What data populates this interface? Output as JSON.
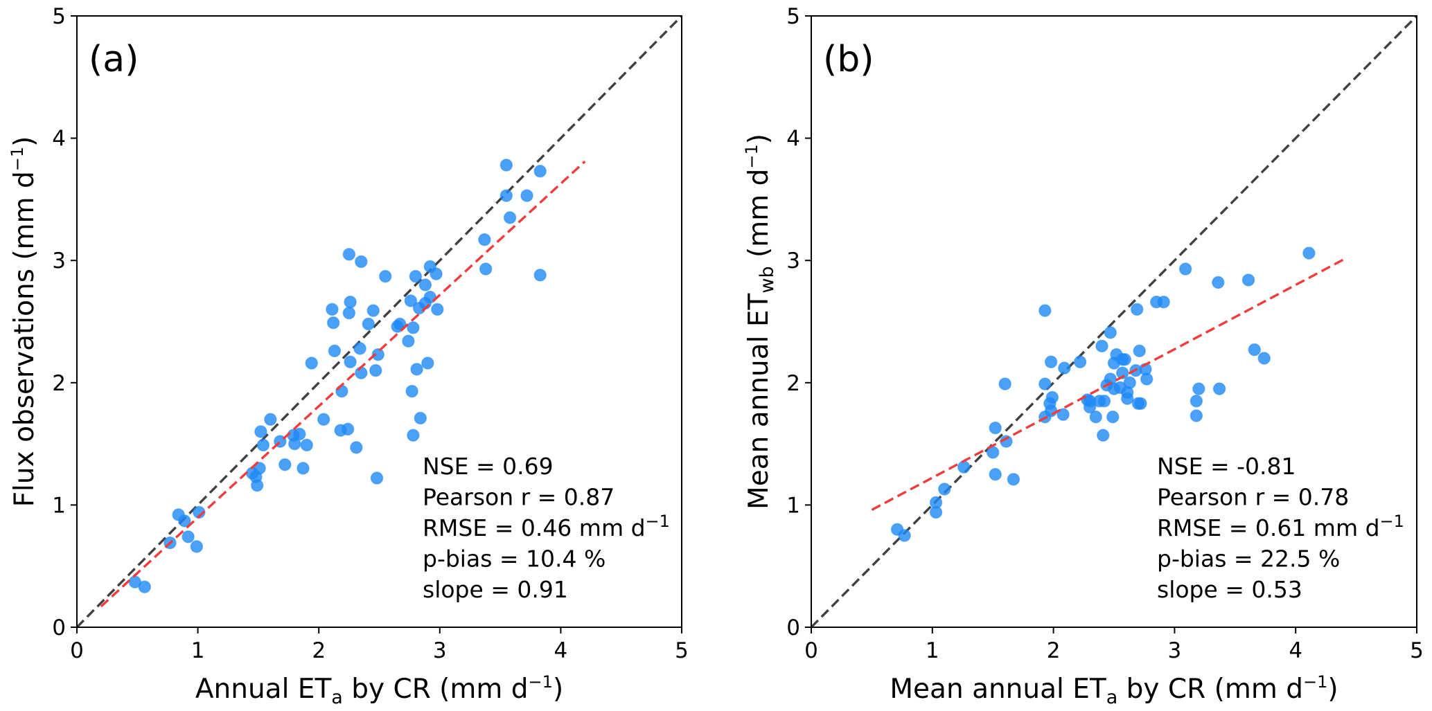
{
  "chart_data": [
    {
      "type": "scatter",
      "panel_label": "(a)",
      "xlabel": {
        "pre": "Annual ET",
        "sub": "a",
        "post": " by CR (mm d",
        "sup": "−1",
        "end": ")"
      },
      "ylabel": {
        "pre": "Flux observations (mm d",
        "sub": "",
        "post": "",
        "sup": "−1",
        "end": ")"
      },
      "xlim": [
        0,
        5
      ],
      "ylim": [
        0,
        5
      ],
      "xticks": [
        "0",
        "1",
        "2",
        "3",
        "4",
        "5"
      ],
      "yticks": [
        "0",
        "1",
        "2",
        "3",
        "4",
        "5"
      ],
      "grid": false,
      "point_color": "#1e88f5",
      "one_to_one_line": {
        "color": "#404040",
        "style": "dashed",
        "from": [
          0,
          0
        ],
        "to": [
          5,
          5
        ]
      },
      "regression_line": {
        "color": "#f03c3c",
        "style": "dashed",
        "from": [
          0.2,
          0.17
        ],
        "to": [
          4.2,
          3.81
        ]
      },
      "stats": [
        {
          "text": "NSE = 0.69"
        },
        {
          "text": "Pearson r = 0.87"
        },
        {
          "text": "RMSE = 0.46 mm d",
          "sup": "−1"
        },
        {
          "text": "p-bias = 10.4 %"
        },
        {
          "text": "slope = 0.91"
        }
      ],
      "points": [
        [
          0.48,
          0.37
        ],
        [
          0.56,
          0.33
        ],
        [
          0.77,
          0.69
        ],
        [
          0.84,
          0.92
        ],
        [
          0.89,
          0.87
        ],
        [
          0.92,
          0.74
        ],
        [
          0.99,
          0.66
        ],
        [
          1.01,
          0.94
        ],
        [
          1.45,
          1.26
        ],
        [
          1.48,
          1.23
        ],
        [
          1.49,
          1.16
        ],
        [
          1.51,
          1.3
        ],
        [
          1.52,
          1.6
        ],
        [
          1.54,
          1.49
        ],
        [
          1.6,
          1.7
        ],
        [
          1.68,
          1.52
        ],
        [
          1.72,
          1.33
        ],
        [
          1.79,
          1.57
        ],
        [
          1.8,
          1.5
        ],
        [
          1.84,
          1.58
        ],
        [
          1.87,
          1.3
        ],
        [
          1.9,
          1.49
        ],
        [
          1.94,
          2.16
        ],
        [
          2.04,
          1.7
        ],
        [
          2.11,
          2.6
        ],
        [
          2.12,
          2.49
        ],
        [
          2.13,
          2.26
        ],
        [
          2.18,
          1.61
        ],
        [
          2.19,
          1.93
        ],
        [
          2.24,
          1.62
        ],
        [
          2.25,
          3.05
        ],
        [
          2.25,
          2.57
        ],
        [
          2.26,
          2.66
        ],
        [
          2.26,
          2.17
        ],
        [
          2.31,
          1.47
        ],
        [
          2.34,
          2.28
        ],
        [
          2.35,
          2.99
        ],
        [
          2.35,
          2.08
        ],
        [
          2.41,
          2.48
        ],
        [
          2.45,
          2.59
        ],
        [
          2.47,
          2.1
        ],
        [
          2.48,
          1.22
        ],
        [
          2.49,
          2.23
        ],
        [
          2.55,
          2.87
        ],
        [
          2.65,
          2.46
        ],
        [
          2.67,
          2.48
        ],
        [
          2.74,
          2.34
        ],
        [
          2.76,
          2.67
        ],
        [
          2.77,
          1.93
        ],
        [
          2.78,
          1.57
        ],
        [
          2.78,
          2.45
        ],
        [
          2.8,
          2.87
        ],
        [
          2.81,
          2.11
        ],
        [
          2.83,
          2.61
        ],
        [
          2.84,
          1.71
        ],
        [
          2.88,
          2.65
        ],
        [
          2.88,
          2.8
        ],
        [
          2.9,
          2.16
        ],
        [
          2.92,
          2.7
        ],
        [
          2.92,
          2.95
        ],
        [
          2.97,
          2.89
        ],
        [
          2.98,
          2.6
        ],
        [
          3.37,
          3.17
        ],
        [
          3.38,
          2.93
        ],
        [
          3.55,
          3.53
        ],
        [
          3.55,
          3.78
        ],
        [
          3.58,
          3.35
        ],
        [
          3.72,
          3.53
        ],
        [
          3.83,
          3.73
        ],
        [
          3.83,
          2.88
        ]
      ]
    },
    {
      "type": "scatter",
      "panel_label": "(b)",
      "xlabel": {
        "pre": "Mean annual ET",
        "sub": "a",
        "post": " by CR (mm d",
        "sup": "−1",
        "end": ")"
      },
      "ylabel": {
        "pre": "Mean annual ET",
        "sub": "wb",
        "post": " (mm d",
        "sup": "−1",
        "end": ")"
      },
      "xlim": [
        0,
        5
      ],
      "ylim": [
        0,
        5
      ],
      "xticks": [
        "0",
        "1",
        "2",
        "3",
        "4",
        "5"
      ],
      "yticks": [
        "0",
        "1",
        "2",
        "3",
        "4",
        "5"
      ],
      "grid": false,
      "point_color": "#1e88f5",
      "one_to_one_line": {
        "color": "#404040",
        "style": "dashed",
        "from": [
          0,
          0
        ],
        "to": [
          5,
          5
        ]
      },
      "regression_line": {
        "color": "#f03c3c",
        "style": "dashed",
        "from": [
          0.5,
          0.96
        ],
        "to": [
          4.4,
          3.01
        ]
      },
      "stats": [
        {
          "text": "NSE = -0.81"
        },
        {
          "text": "Pearson r = 0.78"
        },
        {
          "text": "RMSE = 0.61 mm d",
          "sup": "−1"
        },
        {
          "text": "p-bias = 22.5 %"
        },
        {
          "text": "slope = 0.53"
        }
      ],
      "points": [
        [
          0.71,
          0.8
        ],
        [
          0.77,
          0.75
        ],
        [
          1.03,
          0.94
        ],
        [
          1.03,
          1.02
        ],
        [
          1.1,
          1.13
        ],
        [
          1.26,
          1.31
        ],
        [
          1.5,
          1.43
        ],
        [
          1.52,
          1.63
        ],
        [
          1.52,
          1.25
        ],
        [
          1.61,
          1.52
        ],
        [
          1.6,
          1.99
        ],
        [
          1.67,
          1.21
        ],
        [
          1.93,
          2.59
        ],
        [
          1.93,
          1.99
        ],
        [
          1.93,
          1.72
        ],
        [
          1.97,
          1.83
        ],
        [
          1.98,
          1.77
        ],
        [
          1.98,
          2.17
        ],
        [
          1.99,
          1.88
        ],
        [
          2.08,
          1.74
        ],
        [
          2.09,
          2.12
        ],
        [
          2.22,
          2.17
        ],
        [
          2.28,
          1.86
        ],
        [
          2.3,
          1.85
        ],
        [
          2.3,
          1.8
        ],
        [
          2.35,
          1.72
        ],
        [
          2.38,
          1.85
        ],
        [
          2.4,
          2.3
        ],
        [
          2.41,
          1.57
        ],
        [
          2.42,
          1.85
        ],
        [
          2.44,
          1.98
        ],
        [
          2.47,
          2.41
        ],
        [
          2.47,
          2.03
        ],
        [
          2.49,
          1.72
        ],
        [
          2.5,
          2.16
        ],
        [
          2.5,
          1.95
        ],
        [
          2.52,
          2.23
        ],
        [
          2.55,
          1.96
        ],
        [
          2.57,
          2.19
        ],
        [
          2.57,
          2.08
        ],
        [
          2.59,
          2.19
        ],
        [
          2.61,
          1.92
        ],
        [
          2.61,
          1.87
        ],
        [
          2.63,
          2.0
        ],
        [
          2.68,
          2.1
        ],
        [
          2.69,
          2.6
        ],
        [
          2.7,
          1.83
        ],
        [
          2.71,
          2.26
        ],
        [
          2.72,
          1.83
        ],
        [
          2.76,
          2.11
        ],
        [
          2.77,
          2.03
        ],
        [
          2.85,
          2.66
        ],
        [
          2.91,
          2.66
        ],
        [
          3.09,
          2.93
        ],
        [
          3.18,
          1.85
        ],
        [
          3.18,
          1.73
        ],
        [
          3.2,
          1.95
        ],
        [
          3.36,
          2.82
        ],
        [
          3.37,
          1.95
        ],
        [
          3.61,
          2.84
        ],
        [
          3.66,
          2.27
        ],
        [
          3.74,
          2.2
        ],
        [
          4.11,
          3.06
        ]
      ]
    }
  ]
}
